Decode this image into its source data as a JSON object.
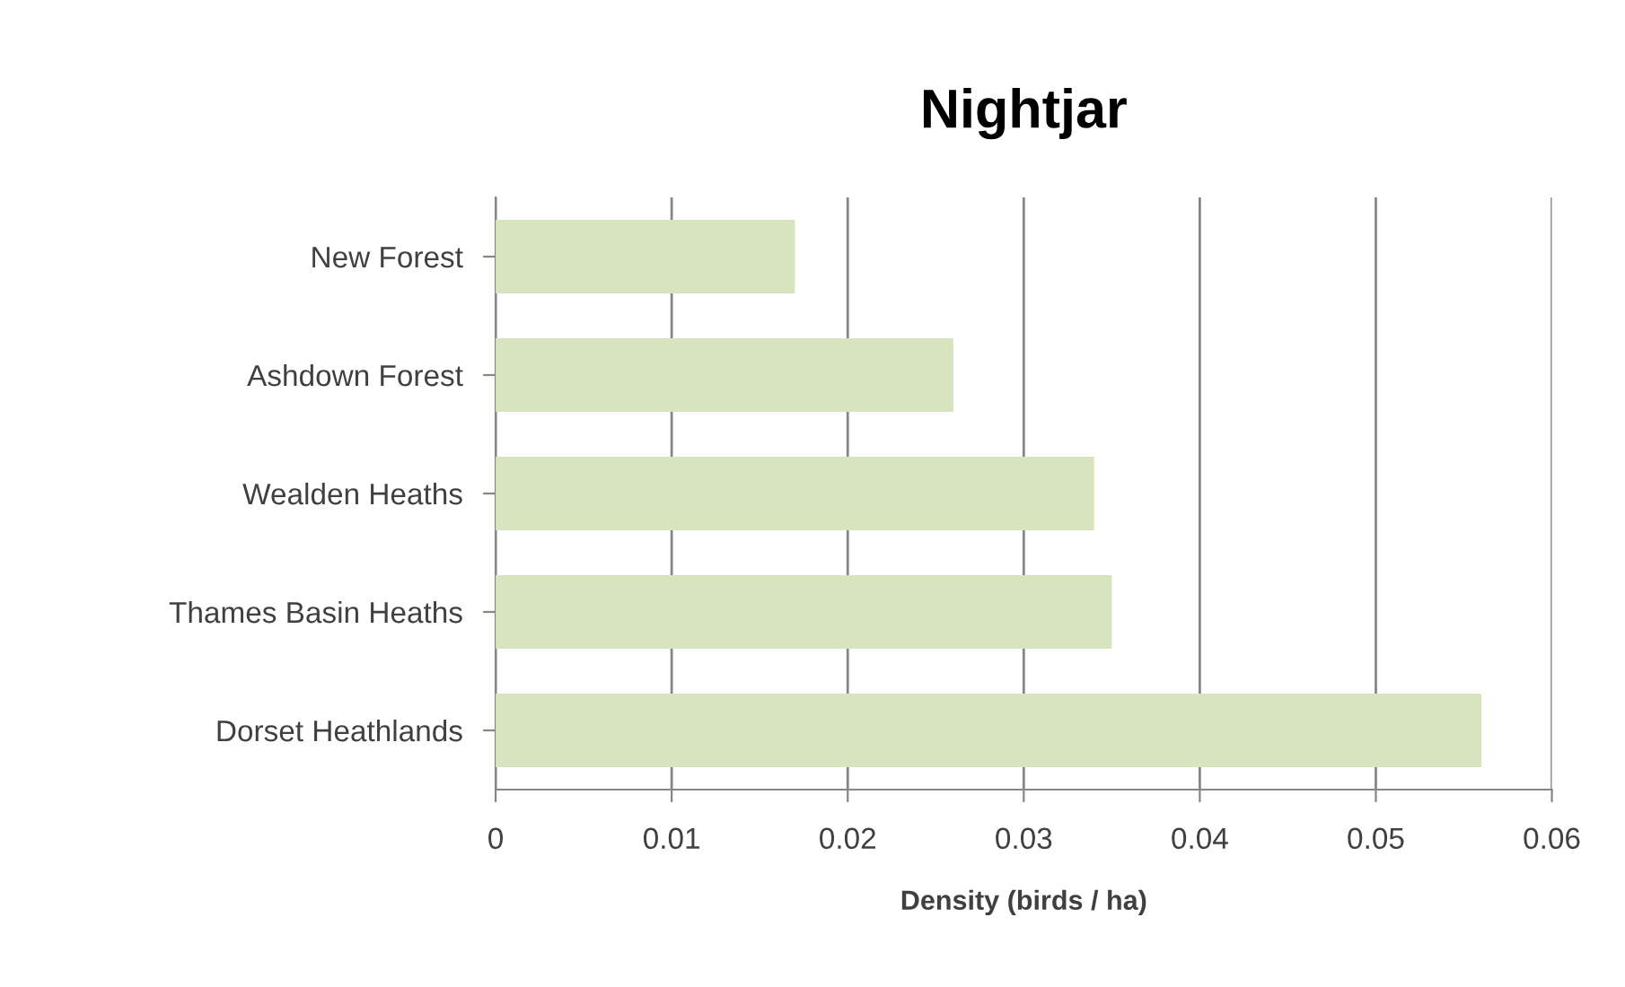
{
  "chart_data": {
    "type": "bar",
    "orientation": "horizontal",
    "title": "Nightjar",
    "xlabel": "Density (birds / ha)",
    "categories": [
      "New Forest",
      "Ashdown Forest",
      "Wealden Heaths",
      "Thames Basin Heaths",
      "Dorset Heathlands"
    ],
    "values": [
      0.017,
      0.026,
      0.034,
      0.035,
      0.056
    ],
    "color": "#d7e4bd",
    "xlim": [
      0,
      0.06
    ],
    "xticks": [
      0,
      0.01,
      0.02,
      0.03,
      0.04,
      0.05,
      0.06
    ],
    "grid": "x",
    "legend": false
  }
}
